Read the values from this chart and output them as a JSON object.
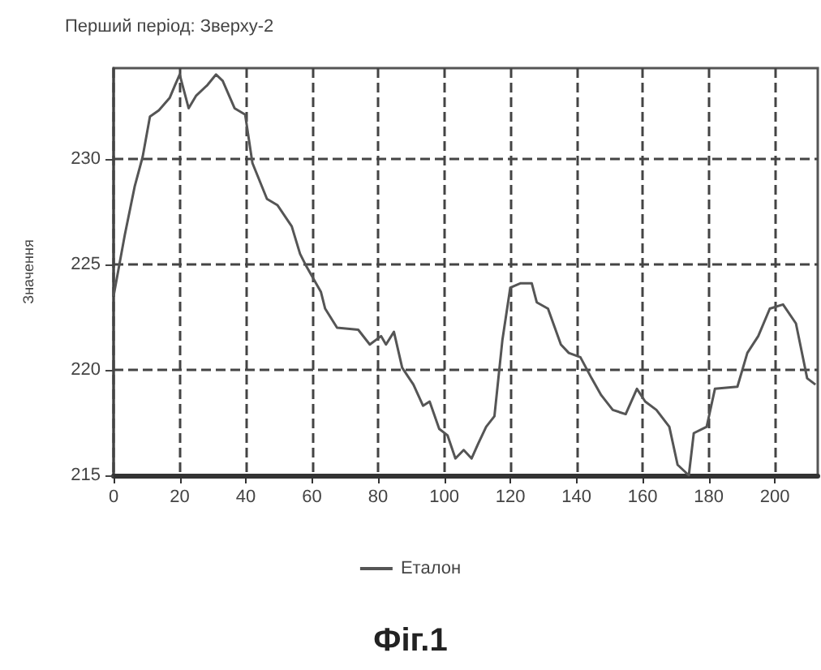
{
  "chart_data": {
    "type": "line",
    "title": "Перший період: Зверху-2",
    "ylabel": "Значення",
    "annotations": [
      "Фіг.1"
    ],
    "x": [
      0,
      3.4,
      6.4,
      8.8,
      11,
      13.7,
      17,
      18.6,
      20,
      22.7,
      25,
      28.4,
      31,
      33,
      36.6,
      39.8,
      42,
      46.4,
      49.6,
      53.9,
      56.4,
      58,
      62.7,
      64,
      67.6,
      74,
      77.5,
      80.9,
      82.4,
      84.8,
      87.3,
      90.7,
      93.6,
      95.6,
      98.5,
      101,
      103.4,
      105.9,
      108.3,
      110.3,
      112.7,
      115.2,
      117.6,
      120,
      123,
      126.5,
      128,
      131.4,
      135.3,
      137.7,
      141.2,
      144.6,
      147.5,
      151,
      154.9,
      158.3,
      160.8,
      164.2,
      168.1,
      170.6,
      174,
      175.5,
      179.4,
      181.9,
      188.7,
      191.7,
      195,
      198.5,
      202.5,
      206.4,
      209.8,
      212.3
    ],
    "series": [
      {
        "name": "Еталон",
        "color": "#555555",
        "values": [
          223.5,
          226.4,
          228.7,
          230.1,
          232,
          232.3,
          232.9,
          233.5,
          234,
          232.4,
          233,
          233.5,
          234,
          233.7,
          232.4,
          232.1,
          229.8,
          228.1,
          227.8,
          226.8,
          225.5,
          225,
          223.7,
          222.9,
          222,
          221.9,
          221.2,
          221.6,
          221.2,
          221.8,
          220.1,
          219.3,
          218.3,
          218.5,
          217.2,
          216.9,
          215.8,
          216.2,
          215.8,
          216.5,
          217.3,
          217.8,
          221.4,
          223.9,
          224.1,
          224.1,
          223.2,
          222.9,
          221.2,
          220.8,
          220.6,
          219.6,
          218.8,
          218.1,
          217.9,
          219.1,
          218.5,
          218.1,
          217.3,
          215.5,
          215,
          217,
          217.3,
          219.1,
          219.2,
          220.8,
          221.6,
          222.9,
          223.1,
          222.2,
          219.6,
          219.3
        ]
      }
    ],
    "xlim": [
      0,
      213
    ],
    "ylim": [
      215,
      234.3
    ],
    "xticks": [
      0,
      20,
      40,
      60,
      80,
      100,
      120,
      140,
      160,
      180,
      200
    ],
    "yticks": [
      215,
      220,
      225,
      230
    ],
    "grid": true,
    "legend": "bottom",
    "marker": "none",
    "line_style": "solid"
  }
}
